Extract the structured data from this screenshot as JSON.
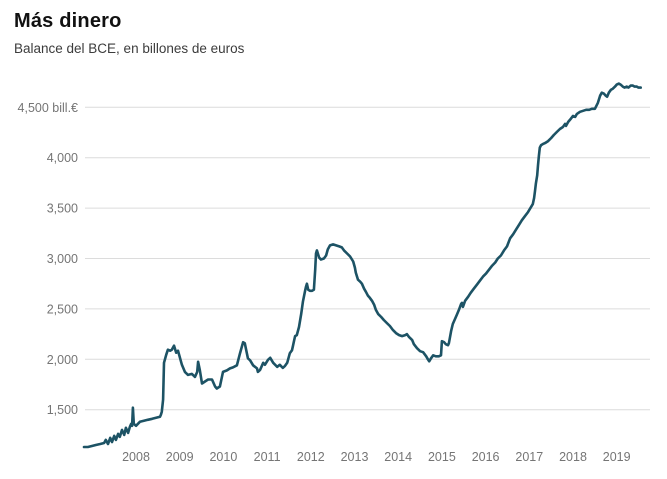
{
  "header": {
    "title": "Más dinero",
    "subtitle": "Balance del BCE, en billones de euros"
  },
  "chart_data": {
    "type": "line",
    "title": "Más dinero",
    "subtitle": "Balance del BCE, en billones de euros",
    "ylabel": "",
    "xlabel": "",
    "unit": "bill.€",
    "line_color": "#1d5365",
    "grid_color": "#dcdcdc",
    "label_color": "#757575",
    "grid_on": true,
    "legend_position": "none",
    "xlim": [
      2006.8,
      2019.6
    ],
    "ylim": [
      1050,
      4780
    ],
    "y_ticks": [
      {
        "value": 1500,
        "label": "1,500"
      },
      {
        "value": 2000,
        "label": "2,000"
      },
      {
        "value": 2500,
        "label": "2,500"
      },
      {
        "value": 3000,
        "label": "3,000"
      },
      {
        "value": 3500,
        "label": "3,500"
      },
      {
        "value": 4000,
        "label": "4,000"
      },
      {
        "value": 4500,
        "label": "4,500 bill.€"
      }
    ],
    "x_ticks": [
      {
        "value": 2008,
        "label": "2008"
      },
      {
        "value": 2009,
        "label": "2009"
      },
      {
        "value": 2010,
        "label": "2010"
      },
      {
        "value": 2011,
        "label": "2011"
      },
      {
        "value": 2012,
        "label": "2012"
      },
      {
        "value": 2013,
        "label": "2013"
      },
      {
        "value": 2014,
        "label": "2014"
      },
      {
        "value": 2015,
        "label": "2015"
      },
      {
        "value": 2016,
        "label": "2016"
      },
      {
        "value": 2017,
        "label": "2017"
      },
      {
        "value": 2018,
        "label": "2018"
      },
      {
        "value": 2019,
        "label": "2019"
      }
    ],
    "series": [
      {
        "name": "Balance del BCE (billones de euros)",
        "points": [
          [
            2006.81,
            1130
          ],
          [
            2006.9,
            1130
          ],
          [
            2006.99,
            1140
          ],
          [
            2007.08,
            1150
          ],
          [
            2007.18,
            1160
          ],
          [
            2007.27,
            1170
          ],
          [
            2007.31,
            1200
          ],
          [
            2007.36,
            1160
          ],
          [
            2007.41,
            1220
          ],
          [
            2007.45,
            1180
          ],
          [
            2007.5,
            1240
          ],
          [
            2007.54,
            1200
          ],
          [
            2007.59,
            1260
          ],
          [
            2007.63,
            1230
          ],
          [
            2007.68,
            1300
          ],
          [
            2007.73,
            1250
          ],
          [
            2007.77,
            1320
          ],
          [
            2007.82,
            1270
          ],
          [
            2007.86,
            1330
          ],
          [
            2007.89,
            1360
          ],
          [
            2007.91,
            1340
          ],
          [
            2007.93,
            1520
          ],
          [
            2007.95,
            1360
          ],
          [
            2008.0,
            1340
          ],
          [
            2008.09,
            1380
          ],
          [
            2008.18,
            1390
          ],
          [
            2008.27,
            1400
          ],
          [
            2008.37,
            1410
          ],
          [
            2008.46,
            1420
          ],
          [
            2008.55,
            1430
          ],
          [
            2008.57,
            1450
          ],
          [
            2008.59,
            1480
          ],
          [
            2008.62,
            1600
          ],
          [
            2008.64,
            1965
          ],
          [
            2008.69,
            2045
          ],
          [
            2008.73,
            2095
          ],
          [
            2008.78,
            2085
          ],
          [
            2008.82,
            2095
          ],
          [
            2008.87,
            2135
          ],
          [
            2008.92,
            2065
          ],
          [
            2008.96,
            2085
          ],
          [
            2009.05,
            1945
          ],
          [
            2009.12,
            1875
          ],
          [
            2009.19,
            1845
          ],
          [
            2009.28,
            1855
          ],
          [
            2009.35,
            1825
          ],
          [
            2009.4,
            1875
          ],
          [
            2009.42,
            1975
          ],
          [
            2009.46,
            1895
          ],
          [
            2009.51,
            1760
          ],
          [
            2009.58,
            1780
          ],
          [
            2009.65,
            1800
          ],
          [
            2009.74,
            1800
          ],
          [
            2009.81,
            1730
          ],
          [
            2009.85,
            1710
          ],
          [
            2009.92,
            1730
          ],
          [
            2009.99,
            1875
          ],
          [
            2010.08,
            1890
          ],
          [
            2010.15,
            1910
          ],
          [
            2010.22,
            1920
          ],
          [
            2010.31,
            1940
          ],
          [
            2010.38,
            2060
          ],
          [
            2010.45,
            2170
          ],
          [
            2010.49,
            2160
          ],
          [
            2010.56,
            2010
          ],
          [
            2010.61,
            1990
          ],
          [
            2010.68,
            1940
          ],
          [
            2010.77,
            1910
          ],
          [
            2010.79,
            1875
          ],
          [
            2010.84,
            1895
          ],
          [
            2010.91,
            1965
          ],
          [
            2010.95,
            1945
          ],
          [
            2011.02,
            1995
          ],
          [
            2011.07,
            2015
          ],
          [
            2011.14,
            1965
          ],
          [
            2011.23,
            1925
          ],
          [
            2011.29,
            1945
          ],
          [
            2011.36,
            1915
          ],
          [
            2011.41,
            1935
          ],
          [
            2011.46,
            1965
          ],
          [
            2011.52,
            2060
          ],
          [
            2011.57,
            2090
          ],
          [
            2011.59,
            2130
          ],
          [
            2011.62,
            2190
          ],
          [
            2011.64,
            2230
          ],
          [
            2011.68,
            2240
          ],
          [
            2011.73,
            2320
          ],
          [
            2011.78,
            2450
          ],
          [
            2011.82,
            2570
          ],
          [
            2011.87,
            2680
          ],
          [
            2011.89,
            2720
          ],
          [
            2011.91,
            2750
          ],
          [
            2011.94,
            2690
          ],
          [
            2011.98,
            2680
          ],
          [
            2012.03,
            2680
          ],
          [
            2012.07,
            2690
          ],
          [
            2012.1,
            2890
          ],
          [
            2012.12,
            3050
          ],
          [
            2012.14,
            3080
          ],
          [
            2012.19,
            3010
          ],
          [
            2012.23,
            2990
          ],
          [
            2012.3,
            3000
          ],
          [
            2012.35,
            3030
          ],
          [
            2012.39,
            3090
          ],
          [
            2012.44,
            3130
          ],
          [
            2012.51,
            3140
          ],
          [
            2012.58,
            3130
          ],
          [
            2012.65,
            3120
          ],
          [
            2012.71,
            3110
          ],
          [
            2012.76,
            3080
          ],
          [
            2012.83,
            3050
          ],
          [
            2012.9,
            3020
          ],
          [
            2012.97,
            2970
          ],
          [
            2013.01,
            2910
          ],
          [
            2013.03,
            2860
          ],
          [
            2013.08,
            2790
          ],
          [
            2013.13,
            2770
          ],
          [
            2013.17,
            2750
          ],
          [
            2013.22,
            2700
          ],
          [
            2013.26,
            2670
          ],
          [
            2013.31,
            2630
          ],
          [
            2013.35,
            2610
          ],
          [
            2013.4,
            2580
          ],
          [
            2013.45,
            2540
          ],
          [
            2013.49,
            2490
          ],
          [
            2013.54,
            2450
          ],
          [
            2013.61,
            2420
          ],
          [
            2013.67,
            2390
          ],
          [
            2013.74,
            2360
          ],
          [
            2013.81,
            2330
          ],
          [
            2013.88,
            2290
          ],
          [
            2013.95,
            2260
          ],
          [
            2014.02,
            2240
          ],
          [
            2014.09,
            2230
          ],
          [
            2014.16,
            2240
          ],
          [
            2014.2,
            2250
          ],
          [
            2014.25,
            2220
          ],
          [
            2014.32,
            2190
          ],
          [
            2014.36,
            2150
          ],
          [
            2014.43,
            2110
          ],
          [
            2014.5,
            2080
          ],
          [
            2014.57,
            2070
          ],
          [
            2014.64,
            2030
          ],
          [
            2014.68,
            2000
          ],
          [
            2014.71,
            1980
          ],
          [
            2014.75,
            2010
          ],
          [
            2014.8,
            2040
          ],
          [
            2014.86,
            2030
          ],
          [
            2014.93,
            2030
          ],
          [
            2014.98,
            2040
          ],
          [
            2015.0,
            2180
          ],
          [
            2015.05,
            2170
          ],
          [
            2015.09,
            2150
          ],
          [
            2015.14,
            2140
          ],
          [
            2015.16,
            2160
          ],
          [
            2015.21,
            2280
          ],
          [
            2015.25,
            2350
          ],
          [
            2015.3,
            2400
          ],
          [
            2015.34,
            2440
          ],
          [
            2015.39,
            2490
          ],
          [
            2015.44,
            2550
          ],
          [
            2015.46,
            2560
          ],
          [
            2015.48,
            2520
          ],
          [
            2015.53,
            2580
          ],
          [
            2015.6,
            2620
          ],
          [
            2015.66,
            2660
          ],
          [
            2015.73,
            2700
          ],
          [
            2015.8,
            2740
          ],
          [
            2015.87,
            2780
          ],
          [
            2015.94,
            2820
          ],
          [
            2016.01,
            2850
          ],
          [
            2016.08,
            2890
          ],
          [
            2016.15,
            2930
          ],
          [
            2016.22,
            2960
          ],
          [
            2016.28,
            3000
          ],
          [
            2016.35,
            3030
          ],
          [
            2016.42,
            3080
          ],
          [
            2016.49,
            3120
          ],
          [
            2016.56,
            3200
          ],
          [
            2016.63,
            3240
          ],
          [
            2016.7,
            3290
          ],
          [
            2016.76,
            3330
          ],
          [
            2016.83,
            3380
          ],
          [
            2016.9,
            3420
          ],
          [
            2016.97,
            3460
          ],
          [
            2017.04,
            3510
          ],
          [
            2017.08,
            3540
          ],
          [
            2017.11,
            3600
          ],
          [
            2017.13,
            3670
          ],
          [
            2017.15,
            3745
          ],
          [
            2017.18,
            3825
          ],
          [
            2017.2,
            3925
          ],
          [
            2017.22,
            4020
          ],
          [
            2017.24,
            4100
          ],
          [
            2017.27,
            4125
          ],
          [
            2017.31,
            4135
          ],
          [
            2017.36,
            4145
          ],
          [
            2017.43,
            4165
          ],
          [
            2017.5,
            4195
          ],
          [
            2017.56,
            4225
          ],
          [
            2017.63,
            4255
          ],
          [
            2017.7,
            4285
          ],
          [
            2017.77,
            4305
          ],
          [
            2017.82,
            4335
          ],
          [
            2017.84,
            4315
          ],
          [
            2017.89,
            4355
          ],
          [
            2017.93,
            4375
          ],
          [
            2018.0,
            4415
          ],
          [
            2018.05,
            4405
          ],
          [
            2018.09,
            4435
          ],
          [
            2018.16,
            4455
          ],
          [
            2018.23,
            4465
          ],
          [
            2018.3,
            4475
          ],
          [
            2018.37,
            4475
          ],
          [
            2018.43,
            4485
          ],
          [
            2018.5,
            4485
          ],
          [
            2018.57,
            4545
          ],
          [
            2018.62,
            4615
          ],
          [
            2018.66,
            4645
          ],
          [
            2018.71,
            4635
          ],
          [
            2018.75,
            4615
          ],
          [
            2018.78,
            4605
          ],
          [
            2018.82,
            4645
          ],
          [
            2018.87,
            4675
          ],
          [
            2018.91,
            4685
          ],
          [
            2018.96,
            4705
          ],
          [
            2019.0,
            4725
          ],
          [
            2019.05,
            4735
          ],
          [
            2019.09,
            4725
          ],
          [
            2019.14,
            4705
          ],
          [
            2019.18,
            4695
          ],
          [
            2019.23,
            4705
          ],
          [
            2019.27,
            4695
          ],
          [
            2019.32,
            4715
          ],
          [
            2019.37,
            4715
          ],
          [
            2019.41,
            4705
          ],
          [
            2019.46,
            4705
          ],
          [
            2019.5,
            4695
          ],
          [
            2019.55,
            4695
          ]
        ]
      }
    ]
  }
}
